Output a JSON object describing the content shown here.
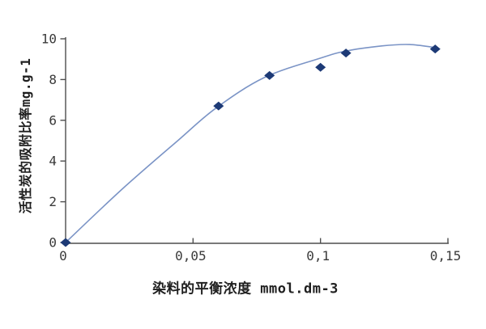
{
  "chart_data": {
    "type": "scatter",
    "title": "",
    "xlabel": "染料的平衡浓度 mmol.dm-3",
    "ylabel": "活性炭的吸附比率mg.g-1",
    "xlim": [
      0,
      0.15
    ],
    "ylim": [
      0,
      10
    ],
    "x_ticks": {
      "values": [
        0,
        0.05,
        0.1,
        0.15
      ],
      "labels": [
        "0",
        "0,05",
        "0,1",
        "0,15"
      ]
    },
    "y_ticks": {
      "values": [
        0,
        2,
        4,
        6,
        8,
        10
      ],
      "labels": [
        "0",
        "2",
        "4",
        "6",
        "8",
        "10"
      ]
    },
    "grid": false,
    "legend": "none",
    "series": [
      {
        "name": "adsorption-data-points",
        "marker": "diamond",
        "points": [
          [
            0,
            0
          ],
          [
            0.06,
            6.7
          ],
          [
            0.08,
            8.2
          ],
          [
            0.1,
            8.6
          ],
          [
            0.11,
            9.3
          ],
          [
            0.145,
            9.5
          ]
        ]
      }
    ],
    "trend_curve": {
      "description": "smooth fitted curve through data points",
      "points": [
        [
          0,
          0
        ],
        [
          0.022,
          2.6
        ],
        [
          0.044,
          5.0
        ],
        [
          0.059,
          6.6
        ],
        [
          0.078,
          8.1
        ],
        [
          0.1,
          9.05
        ],
        [
          0.11,
          9.4
        ],
        [
          0.124,
          9.65
        ],
        [
          0.135,
          9.72
        ],
        [
          0.146,
          9.55
        ]
      ]
    },
    "colors": {
      "marker": "#1d3a76",
      "curve": "#7b94c6",
      "axis": "#4d4d4d",
      "tick_text": "#3a3a3a",
      "label_text": "#1f1f1f",
      "background": "#ffffff"
    }
  }
}
